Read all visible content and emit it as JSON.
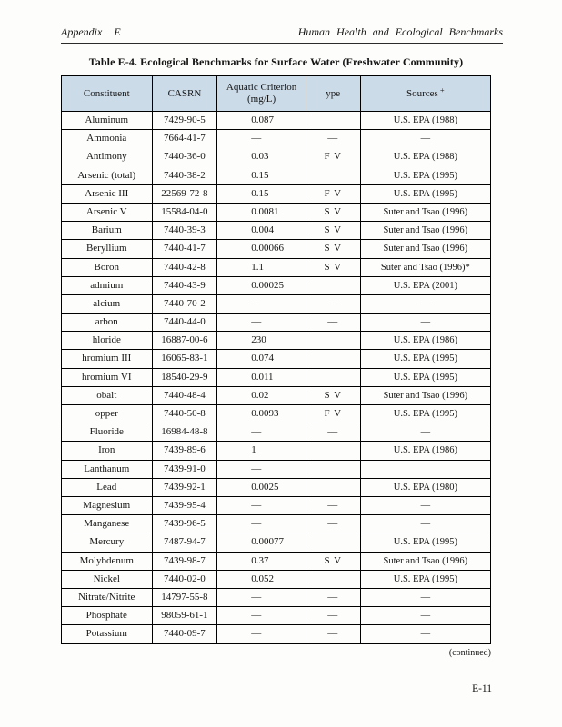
{
  "page": {
    "header_left": "Appendix E",
    "header_right": "Human Health and Ecological Benchmarks",
    "continued": "(continued)",
    "page_number": "E-11"
  },
  "table": {
    "title": "Table E-4. Ecological Benchmarks for Surface Water (Freshwater Community)",
    "style": {
      "header_bg": "#ccdbe8",
      "border_color": "#000000"
    },
    "header": {
      "constituent": "Constituent",
      "casrn": "CASRN",
      "criterion_line1": "Aquatic Criterion",
      "criterion_line2": "(mg/L)",
      "type": "ype",
      "sources": "Sources",
      "sources_sup": "+"
    },
    "rows": [
      {
        "constituent": "Aluminum",
        "casrn": "7429-90-5",
        "criterion": "0.087",
        "type": "",
        "source": "U.S. EPA (1988)",
        "sep": true
      },
      {
        "constituent": "Ammonia",
        "casrn": "7664-41-7",
        "criterion": "—",
        "type": "—",
        "source": "—",
        "sep": false
      },
      {
        "constituent": "Antimony",
        "casrn": "7440-36-0",
        "criterion": "0.03",
        "type": "F V",
        "source": "U.S. EPA (1988)",
        "sep": false
      },
      {
        "constituent": "Arsenic (total)",
        "casrn": "7440-38-2",
        "criterion": "0.15",
        "type": "",
        "source": "U.S. EPA (1995)",
        "sep": true
      },
      {
        "constituent": "Arsenic III",
        "casrn": "22569-72-8",
        "criterion": "0.15",
        "type": "F V",
        "source": "U.S. EPA (1995)",
        "sep": true
      },
      {
        "constituent": "Arsenic V",
        "casrn": "15584-04-0",
        "criterion": "0.0081",
        "type": "S V",
        "source": "Suter and Tsao (1996)",
        "sep": true
      },
      {
        "constituent": "Barium",
        "casrn": "7440-39-3",
        "criterion": "0.004",
        "type": "S V",
        "source": "Suter and Tsao (1996)",
        "sep": true
      },
      {
        "constituent": "Beryllium",
        "casrn": "7440-41-7",
        "criterion": "0.00066",
        "type": "S V",
        "source": "Suter and Tsao (1996)",
        "sep": true
      },
      {
        "constituent": "Boron",
        "casrn": "7440-42-8",
        "criterion": "1.1",
        "type": "S V",
        "source": "Suter and Tsao (1996)*",
        "sep": true
      },
      {
        "constituent": "admium",
        "casrn": "7440-43-9",
        "criterion": "0.00025",
        "type": "",
        "source": "U.S. EPA (2001)",
        "sep": true
      },
      {
        "constituent": "alcium",
        "casrn": "7440-70-2",
        "criterion": "—",
        "type": "—",
        "source": "—",
        "sep": true
      },
      {
        "constituent": "arbon",
        "casrn": "7440-44-0",
        "criterion": "—",
        "type": "—",
        "source": "—",
        "sep": true
      },
      {
        "constituent": "hloride",
        "casrn": "16887-00-6",
        "criterion": "230",
        "type": "",
        "source": "U.S. EPA (1986)",
        "sep": true
      },
      {
        "constituent": "hromium III",
        "casrn": "16065-83-1",
        "criterion": "0.074",
        "type": "",
        "source": "U.S. EPA (1995)",
        "sep": true
      },
      {
        "constituent": "hromium VI",
        "casrn": "18540-29-9",
        "criterion": "0.011",
        "type": "",
        "source": "U.S. EPA (1995)",
        "sep": true
      },
      {
        "constituent": "obalt",
        "casrn": "7440-48-4",
        "criterion": "0.02",
        "type": "S V",
        "source": "Suter and Tsao (1996)",
        "sep": true
      },
      {
        "constituent": "opper",
        "casrn": "7440-50-8",
        "criterion": "0.0093",
        "type": "F V",
        "source": "U.S. EPA (1995)",
        "sep": true
      },
      {
        "constituent": "Fluoride",
        "casrn": "16984-48-8",
        "criterion": "—",
        "type": "—",
        "source": "—",
        "sep": true
      },
      {
        "constituent": "Iron",
        "casrn": "7439-89-6",
        "criterion": "1",
        "type": "",
        "source": "U.S. EPA (1986)",
        "sep": true
      },
      {
        "constituent": "Lanthanum",
        "casrn": "7439-91-0",
        "criterion": "—",
        "type": "",
        "source": "",
        "sep": true
      },
      {
        "constituent": "Lead",
        "casrn": "7439-92-1",
        "criterion": "0.0025",
        "type": "",
        "source": "U.S. EPA (1980)",
        "sep": true
      },
      {
        "constituent": "Magnesium",
        "casrn": "7439-95-4",
        "criterion": "—",
        "type": "—",
        "source": "—",
        "sep": true
      },
      {
        "constituent": "Manganese",
        "casrn": "7439-96-5",
        "criterion": "—",
        "type": "—",
        "source": "—",
        "sep": true
      },
      {
        "constituent": "Mercury",
        "casrn": "7487-94-7",
        "criterion": "0.00077",
        "type": "",
        "source": "U.S. EPA (1995)",
        "sep": true
      },
      {
        "constituent": "Molybdenum",
        "casrn": "7439-98-7",
        "criterion": "0.37",
        "type": "S V",
        "source": "Suter and Tsao (1996)",
        "sep": true
      },
      {
        "constituent": "Nickel",
        "casrn": "7440-02-0",
        "criterion": "0.052",
        "type": "",
        "source": "U.S. EPA (1995)",
        "sep": true
      },
      {
        "constituent": "Nitrate/Nitrite",
        "casrn": "14797-55-8",
        "criterion": "—",
        "type": "—",
        "source": "—",
        "sep": true
      },
      {
        "constituent": "Phosphate",
        "casrn": "98059-61-1",
        "criterion": "—",
        "type": "—",
        "source": "—",
        "sep": true
      },
      {
        "constituent": "Potassium",
        "casrn": "7440-09-7",
        "criterion": "—",
        "type": "—",
        "source": "—",
        "sep": false
      }
    ]
  }
}
